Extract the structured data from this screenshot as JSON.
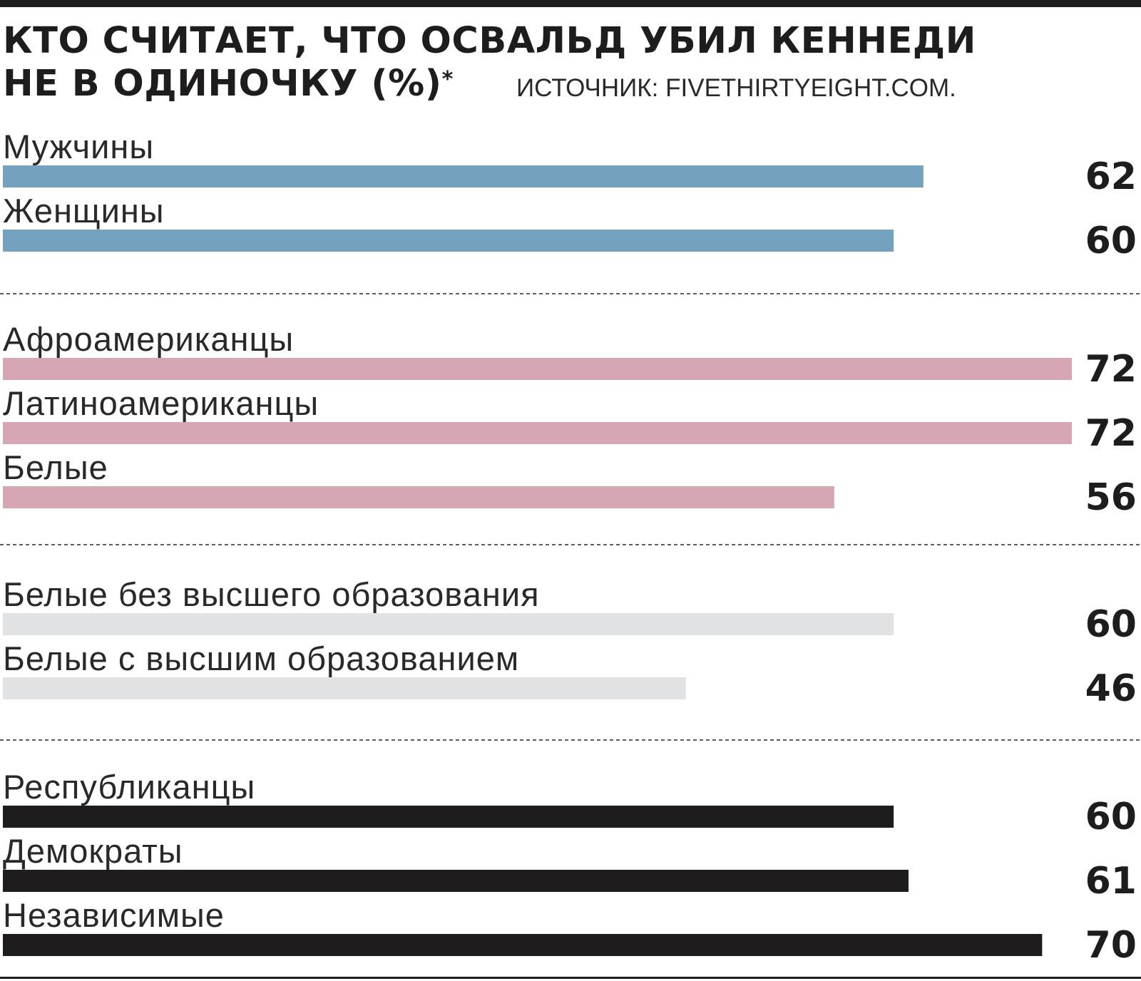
{
  "header": {
    "title_line_1": "КТО СЧИТАЕТ, ЧТО ОСВАЛЬД УБИЛ КЕННЕДИ",
    "title_line_2": "НЕ В ОДИНОЧКУ (%)",
    "title_footnote_mark": "*",
    "source": "ИСТОЧНИК: FIVETHIRTYEIGHT.COM."
  },
  "chart_data": {
    "type": "bar",
    "orientation": "horizontal",
    "title": "КТО СЧИТАЕТ, ЧТО ОСВАЛЬД УБИЛ КЕННЕДИ НЕ В ОДИНОЧКУ (%)*",
    "xlim": [
      0,
      72
    ],
    "grid": false,
    "groups": [
      {
        "color": "#74a1bd",
        "items": [
          {
            "label": "Мужчины",
            "value": 62
          },
          {
            "label": "Женщины",
            "value": 60
          }
        ]
      },
      {
        "color": "#d7a6b3",
        "items": [
          {
            "label": "Афроамериканцы",
            "value": 72
          },
          {
            "label": "Латиноамериканцы",
            "value": 72
          },
          {
            "label": "Белые",
            "value": 56
          }
        ]
      },
      {
        "color": "#e1e2e4",
        "items": [
          {
            "label": "Белые без высшего образования",
            "value": 60
          },
          {
            "label": "Белые с высшим образованием",
            "value": 46
          }
        ]
      },
      {
        "color": "#1e1c1c",
        "items": [
          {
            "label": "Республиканцы",
            "value": 60
          },
          {
            "label": "Демократы",
            "value": 61
          },
          {
            "label": "Независимые",
            "value": 70
          }
        ]
      }
    ]
  }
}
